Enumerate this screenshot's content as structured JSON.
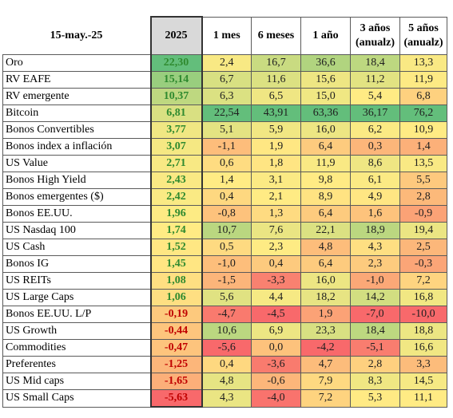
{
  "header": {
    "date": "15-may.-25",
    "columns": [
      "2025",
      "1 mes",
      "6 meses",
      "1 año",
      "3 años|(anualz)",
      "5 años|(anualz)"
    ]
  },
  "rows": [
    {
      "name": "Oro",
      "values": [
        "22,30",
        "2,4",
        "16,7",
        "36,6",
        "18,4",
        "13,3"
      ]
    },
    {
      "name": "RV EAFE",
      "values": [
        "15,14",
        "6,7",
        "11,6",
        "15,6",
        "11,2",
        "11,9"
      ]
    },
    {
      "name": "RV emergente",
      "values": [
        "10,37",
        "6,3",
        "6,5",
        "15,0",
        "5,4",
        "6,8"
      ]
    },
    {
      "name": "Bitcoin",
      "values": [
        "6,81",
        "22,54",
        "43,91",
        "63,36",
        "36,17",
        "76,2"
      ]
    },
    {
      "name": "Bonos Convertibles",
      "values": [
        "3,77",
        "5,1",
        "5,9",
        "16,0",
        "6,2",
        "10,9"
      ]
    },
    {
      "name": "Bonos index a inflación",
      "values": [
        "3,07",
        "-1,1",
        "1,9",
        "6,4",
        "0,3",
        "1,4"
      ]
    },
    {
      "name": "US Value",
      "values": [
        "2,71",
        "0,6",
        "1,8",
        "11,9",
        "8,6",
        "13,5"
      ]
    },
    {
      "name": "Bonos High Yield",
      "values": [
        "2,43",
        "1,4",
        "3,1",
        "9,8",
        "6,1",
        "5,5"
      ]
    },
    {
      "name": "Bonos emergentes ($)",
      "values": [
        "2,42",
        "0,4",
        "2,1",
        "8,9",
        "4,9",
        "2,8"
      ]
    },
    {
      "name": "Bonos EE.UU.",
      "values": [
        "1,96",
        "-0,8",
        "1,3",
        "6,4",
        "1,6",
        "-0,9"
      ]
    },
    {
      "name": "US Nasdaq 100",
      "values": [
        "1,74",
        "10,7",
        "7,6",
        "22,1",
        "18,9",
        "19,4"
      ]
    },
    {
      "name": "US Cash",
      "values": [
        "1,52",
        "0,5",
        "2,3",
        "4,8",
        "4,3",
        "2,5"
      ]
    },
    {
      "name": "Bonos IG",
      "values": [
        "1,45",
        "-1,0",
        "0,4",
        "6,4",
        "2,3",
        "-0,3"
      ]
    },
    {
      "name": "US REITs",
      "values": [
        "1,08",
        "-1,5",
        "-3,3",
        "16,0",
        "-1,0",
        "7,2"
      ]
    },
    {
      "name": "US Large Caps",
      "values": [
        "1,06",
        "5,6",
        "4,4",
        "18,2",
        "14,2",
        "16,8"
      ]
    },
    {
      "name": "Bonos EE.UU.   L/P",
      "values": [
        "-0,19",
        "-4,7",
        "-4,5",
        "1,9",
        "-7,0",
        "-10,0"
      ]
    },
    {
      "name": "US Growth",
      "values": [
        "-0,44",
        "10,6",
        "6,9",
        "23,3",
        "18,4",
        "18,8"
      ]
    },
    {
      "name": "Commodities",
      "values": [
        "-0,47",
        "-5,6",
        "0,0",
        "-4,2",
        "-5,1",
        "16,6"
      ]
    },
    {
      "name": "Preferentes",
      "values": [
        "-1,25",
        "0,4",
        "-3,6",
        "4,7",
        "2,8",
        "3,3"
      ]
    },
    {
      "name": "US Mid caps",
      "values": [
        "-1,65",
        "4,8",
        "-0,6",
        "7,9",
        "8,3",
        "14,5"
      ]
    },
    {
      "name": "US Small Caps",
      "values": [
        "-5,63",
        "4,3",
        "-4,0",
        "7,2",
        "5,3",
        "11,1"
      ]
    }
  ],
  "colors": {
    "green": "#63be7b",
    "yellow": "#ffeb84",
    "red": "#f8696b",
    "pos_text": "#2f8a2f",
    "neg_text": "#c00000",
    "header_2025": "#d9d9d9"
  }
}
